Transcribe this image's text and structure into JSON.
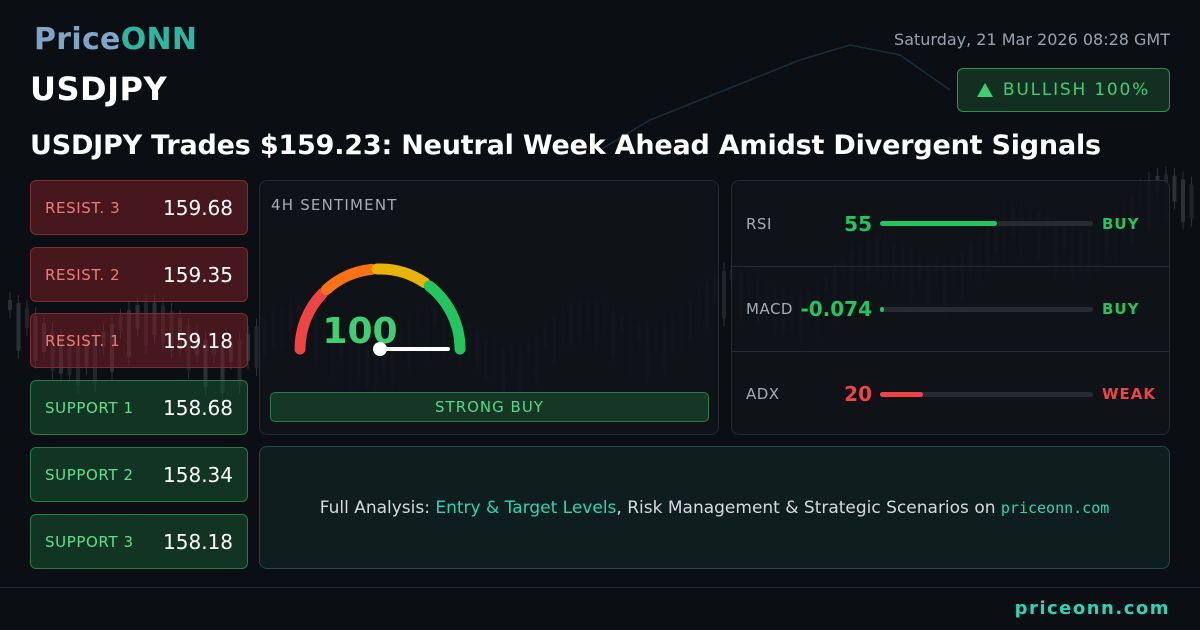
{
  "brand": {
    "logo_part1": "Price",
    "logo_part2": "ONN",
    "footer_site": "priceonn.com"
  },
  "header": {
    "ticker": "USDJPY",
    "datetime": "Saturday, 21 Mar 2026 08:28 GMT",
    "badge": "BULLISH 100%",
    "headline": "USDJPY Trades $159.23: Neutral Week Ahead Amidst Divergent Signals"
  },
  "levels": [
    {
      "label": "RESIST. 3",
      "value": "159.68",
      "kind": "resistance"
    },
    {
      "label": "RESIST. 2",
      "value": "159.35",
      "kind": "resistance"
    },
    {
      "label": "RESIST. 1",
      "value": "159.18",
      "kind": "resistance"
    },
    {
      "label": "SUPPORT 1",
      "value": "158.68",
      "kind": "support"
    },
    {
      "label": "SUPPORT 2",
      "value": "158.34",
      "kind": "support"
    },
    {
      "label": "SUPPORT 3",
      "value": "158.18",
      "kind": "support"
    }
  ],
  "sentiment": {
    "title": "4H SENTIMENT",
    "score": "100",
    "score_fraction": 1.0,
    "signal": "STRONG BUY"
  },
  "indicators": [
    {
      "name": "RSI",
      "value": "55",
      "fill_fraction": 0.55,
      "signal": "BUY",
      "color": "#22c55e"
    },
    {
      "name": "MACD",
      "value": "-0.074",
      "fill_fraction": 0.01,
      "signal": "BUY",
      "color": "#22c55e"
    },
    {
      "name": "ADX",
      "value": "20",
      "fill_fraction": 0.2,
      "signal": "WEAK",
      "color": "#ef4444"
    }
  ],
  "cta": {
    "prefix": "Full Analysis: ",
    "highlight": "Entry & Target Levels",
    "middle": ", Risk Management & Strategic Scenarios on ",
    "site": "priceonn.com"
  },
  "colors": {
    "bullish": "#3ecf73",
    "bearish": "#ef4444",
    "accent": "#2cd5b8"
  }
}
